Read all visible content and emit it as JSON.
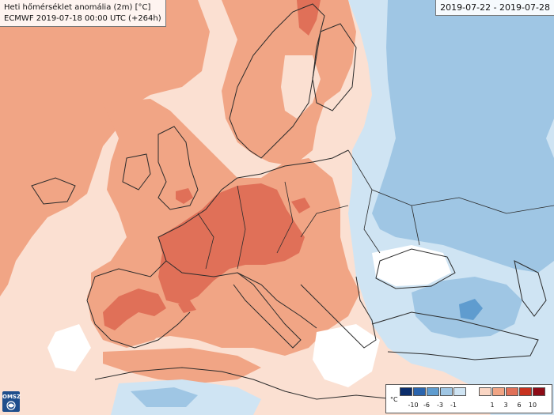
{
  "title": {
    "line1": "Heti hőmérséklet anomália (2m) [°C]",
    "line2": "ECMWF 2019-07-18 00:00 UTC (+264h)"
  },
  "date_range": "2019-07-22 - 2019-07-28",
  "logo_text": "OMSZ",
  "legend": {
    "unit": "°C",
    "negative_colors": [
      "#0b2d6b",
      "#2a64ad",
      "#5f9ccf",
      "#9fc6e4",
      "#cfe4f3"
    ],
    "positive_colors": [
      "#fad6c4",
      "#f1a585",
      "#e07058",
      "#c8321f",
      "#8e0c17"
    ],
    "negative_ticks": [
      "-10",
      "-6",
      "-3",
      "-1"
    ],
    "positive_ticks": [
      "1",
      "3",
      "6",
      "10"
    ]
  },
  "colors": {
    "sea_background": "#fbe0d2",
    "coastline": "#2b2b2b"
  }
}
